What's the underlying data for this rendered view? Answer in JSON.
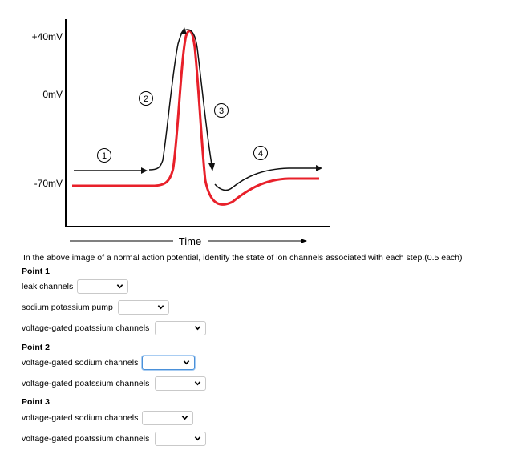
{
  "figure": {
    "y_labels": [
      "+40mV",
      "0mV",
      "-70mV"
    ],
    "x_label": "Time",
    "point_labels": [
      "1",
      "2",
      "3",
      "4"
    ],
    "colors": {
      "black_curve": "#111111",
      "red_curve": "#e8202a",
      "axis": "#000000"
    }
  },
  "question": {
    "prompt": "In the above image of a normal action potential, identify the state of ion channels associated with each step.(0.5 each)",
    "sections": [
      {
        "title": "Point 1",
        "rows": [
          {
            "label": "leak channels",
            "value": ""
          },
          {
            "label": "sodium potassium pump",
            "value": ""
          },
          {
            "label": "voltage-gated poatssium channels",
            "value": ""
          }
        ]
      },
      {
        "title": "Point 2",
        "rows": [
          {
            "label": "voltage-gated sodium channels",
            "value": "",
            "focused": true
          },
          {
            "label": "voltage-gated poatssium channels",
            "value": ""
          }
        ]
      },
      {
        "title": "Point 3",
        "rows": [
          {
            "label": "voltage-gated sodium channels",
            "value": ""
          },
          {
            "label": "voltage-gated poatssium channels",
            "value": ""
          }
        ]
      }
    ]
  },
  "icons": {
    "dropdown": "chevron-down-icon"
  }
}
